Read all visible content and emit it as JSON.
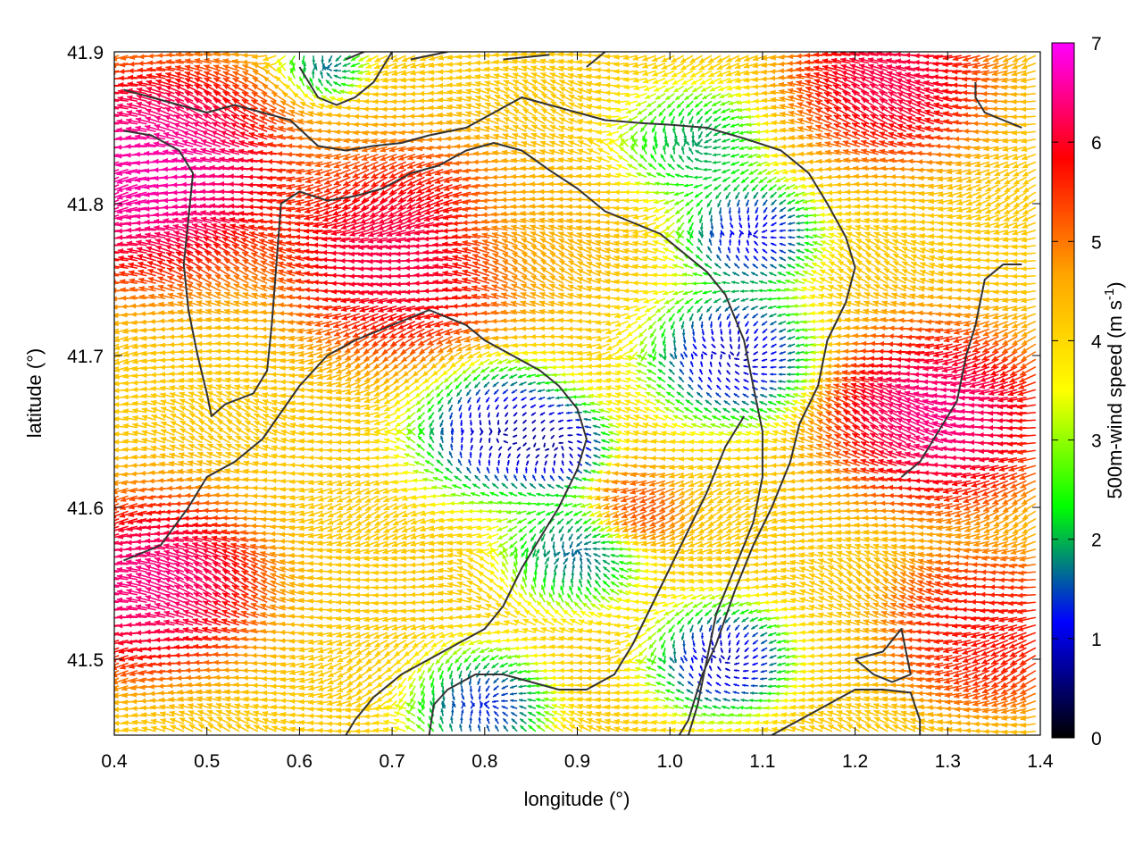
{
  "chart_data": {
    "type": "vector-field",
    "xlabel": "longitude (°)",
    "ylabel": "latitude (°)",
    "colorbar_label": "500m-wind speed (m s",
    "colorbar_label_sup": "-1",
    "colorbar_label_close": ")",
    "xlim": [
      0.4,
      1.4
    ],
    "ylim": [
      41.45,
      41.9
    ],
    "x_ticks": [
      0.4,
      0.5,
      0.6,
      0.7,
      0.8,
      0.9,
      1.0,
      1.1,
      1.2,
      1.3,
      1.4
    ],
    "x_tick_labels": [
      "0.4",
      "0.5",
      "0.6",
      "0.7",
      "0.8",
      "0.9",
      "1.0",
      "1.1",
      "1.2",
      "1.3",
      "1.4"
    ],
    "y_ticks": [
      41.5,
      41.6,
      41.7,
      41.8,
      41.9
    ],
    "y_tick_labels": [
      "41.5",
      "41.6",
      "41.7",
      "41.8",
      "41.9"
    ],
    "colorbar": {
      "min": 0,
      "max": 7,
      "ticks": [
        0,
        1,
        2,
        3,
        4,
        5,
        6,
        7
      ],
      "tick_labels": [
        "0",
        "1",
        "2",
        "3",
        "4",
        "5",
        "6",
        "7"
      ],
      "palette": [
        "#000000",
        "#0000ff",
        "#00ff00",
        "#ffff00",
        "#ffa500",
        "#ff0000",
        "#ff00ff"
      ]
    },
    "wind_field": {
      "lon_step": 0.01,
      "lat_step": 0.005,
      "speed_centers": [
        {
          "lon": 0.82,
          "lat": 41.65,
          "speed": 0.2,
          "radius": 0.06
        },
        {
          "lon": 0.88,
          "lat": 41.64,
          "speed": 0.3,
          "radius": 0.04
        },
        {
          "lon": 1.07,
          "lat": 41.7,
          "speed": 0.3,
          "radius": 0.06
        },
        {
          "lon": 1.09,
          "lat": 41.78,
          "speed": 0.5,
          "radius": 0.05
        },
        {
          "lon": 1.06,
          "lat": 41.5,
          "speed": 0.3,
          "radius": 0.05
        },
        {
          "lon": 0.8,
          "lat": 41.47,
          "speed": 0.8,
          "radius": 0.05
        },
        {
          "lon": 0.63,
          "lat": 41.89,
          "speed": 1.2,
          "radius": 0.03
        },
        {
          "lon": 1.03,
          "lat": 41.84,
          "speed": 1.5,
          "radius": 0.05
        },
        {
          "lon": 0.9,
          "lat": 41.57,
          "speed": 1.2,
          "radius": 0.05
        },
        {
          "lon": 0.97,
          "lat": 41.6,
          "speed": 5.5,
          "radius": 0.035
        },
        {
          "lon": 0.72,
          "lat": 41.77,
          "speed": 6.5,
          "radius": 0.09
        },
        {
          "lon": 0.45,
          "lat": 41.82,
          "speed": 7,
          "radius": 0.1
        },
        {
          "lon": 0.45,
          "lat": 41.55,
          "speed": 6.8,
          "radius": 0.08
        },
        {
          "lon": 1.3,
          "lat": 41.66,
          "speed": 6.8,
          "radius": 0.08
        },
        {
          "lon": 1.25,
          "lat": 41.88,
          "speed": 6.5,
          "radius": 0.07
        },
        {
          "lon": 1.35,
          "lat": 41.52,
          "speed": 6,
          "radius": 0.07
        },
        {
          "lon": 0.86,
          "lat": 41.78,
          "speed": 4.5,
          "radius": 0.06
        }
      ],
      "background_speed": 4.2
    },
    "contours": [
      [
        [
          0.41,
          41.875
        ],
        [
          0.44,
          41.87
        ],
        [
          0.47,
          41.865
        ],
        [
          0.5,
          41.86
        ],
        [
          0.53,
          41.865
        ],
        [
          0.56,
          41.86
        ],
        [
          0.59,
          41.855
        ],
        [
          0.62,
          41.838
        ],
        [
          0.65,
          41.835
        ],
        [
          0.68,
          41.838
        ],
        [
          0.71,
          41.84
        ],
        [
          0.74,
          41.845
        ],
        [
          0.78,
          41.85
        ],
        [
          0.81,
          41.86
        ],
        [
          0.84,
          41.87
        ],
        [
          0.87,
          41.865
        ],
        [
          0.9,
          41.86
        ],
        [
          0.93,
          41.855
        ],
        [
          0.97,
          41.853
        ],
        [
          1.0,
          41.852
        ],
        [
          1.04,
          41.85
        ],
        [
          1.08,
          41.843
        ],
        [
          1.12,
          41.835
        ],
        [
          1.15,
          41.82
        ],
        [
          1.17,
          41.8
        ],
        [
          1.19,
          41.778
        ],
        [
          1.2,
          41.758
        ],
        [
          1.19,
          41.735
        ],
        [
          1.17,
          41.71
        ],
        [
          1.16,
          41.68
        ],
        [
          1.14,
          41.655
        ],
        [
          1.13,
          41.63
        ],
        [
          1.11,
          41.6
        ],
        [
          1.09,
          41.575
        ],
        [
          1.07,
          41.545
        ],
        [
          1.05,
          41.51
        ],
        [
          1.035,
          41.49
        ],
        [
          1.02,
          41.46
        ],
        [
          1.01,
          41.45
        ]
      ],
      [
        [
          0.41,
          41.848
        ],
        [
          0.44,
          41.845
        ],
        [
          0.47,
          41.835
        ],
        [
          0.485,
          41.82
        ],
        [
          0.48,
          41.79
        ],
        [
          0.475,
          41.76
        ],
        [
          0.48,
          41.73
        ],
        [
          0.49,
          41.7
        ],
        [
          0.5,
          41.675
        ],
        [
          0.505,
          41.66
        ],
        [
          0.52,
          41.668
        ],
        [
          0.55,
          41.675
        ],
        [
          0.565,
          41.69
        ],
        [
          0.57,
          41.72
        ],
        [
          0.575,
          41.76
        ],
        [
          0.58,
          41.8
        ],
        [
          0.6,
          41.808
        ],
        [
          0.63,
          41.802
        ],
        [
          0.66,
          41.805
        ],
        [
          0.69,
          41.81
        ],
        [
          0.72,
          41.82
        ],
        [
          0.75,
          41.825
        ],
        [
          0.78,
          41.835
        ],
        [
          0.81,
          41.84
        ],
        [
          0.84,
          41.835
        ],
        [
          0.87,
          41.822
        ],
        [
          0.9,
          41.81
        ],
        [
          0.93,
          41.795
        ],
        [
          0.95,
          41.79
        ],
        [
          0.97,
          41.785
        ],
        [
          0.99,
          41.78
        ],
        [
          1.02,
          41.765
        ],
        [
          1.04,
          41.755
        ],
        [
          1.06,
          41.74
        ],
        [
          1.08,
          41.71
        ],
        [
          1.09,
          41.68
        ],
        [
          1.1,
          41.65
        ],
        [
          1.1,
          41.62
        ],
        [
          1.09,
          41.59
        ],
        [
          1.07,
          41.56
        ],
        [
          1.05,
          41.53
        ],
        [
          1.04,
          41.5
        ],
        [
          1.03,
          41.47
        ],
        [
          1.02,
          41.45
        ]
      ],
      [
        [
          0.41,
          41.565
        ],
        [
          0.45,
          41.575
        ],
        [
          0.48,
          41.6
        ],
        [
          0.5,
          41.62
        ],
        [
          0.53,
          41.63
        ],
        [
          0.56,
          41.645
        ],
        [
          0.6,
          41.68
        ],
        [
          0.63,
          41.7
        ],
        [
          0.66,
          41.71
        ],
        [
          0.7,
          41.72
        ],
        [
          0.74,
          41.73
        ],
        [
          0.78,
          41.72
        ],
        [
          0.8,
          41.71
        ],
        [
          0.83,
          41.7
        ],
        [
          0.86,
          41.69
        ],
        [
          0.88,
          41.68
        ],
        [
          0.9,
          41.665
        ],
        [
          0.91,
          41.645
        ],
        [
          0.9,
          41.625
        ],
        [
          0.88,
          41.6
        ],
        [
          0.86,
          41.58
        ],
        [
          0.84,
          41.56
        ],
        [
          0.82,
          41.535
        ],
        [
          0.8,
          41.52
        ],
        [
          0.77,
          41.51
        ],
        [
          0.74,
          41.5
        ],
        [
          0.71,
          41.49
        ],
        [
          0.68,
          41.475
        ],
        [
          0.66,
          41.46
        ],
        [
          0.65,
          41.45
        ]
      ],
      [
        [
          0.74,
          41.45
        ],
        [
          0.745,
          41.47
        ],
        [
          0.76,
          41.48
        ],
        [
          0.79,
          41.49
        ],
        [
          0.82,
          41.49
        ],
        [
          0.85,
          41.485
        ],
        [
          0.88,
          41.48
        ],
        [
          0.91,
          41.48
        ],
        [
          0.94,
          41.49
        ],
        [
          0.96,
          41.51
        ],
        [
          0.98,
          41.535
        ],
        [
          1.0,
          41.56
        ],
        [
          1.02,
          41.585
        ],
        [
          1.04,
          41.61
        ],
        [
          1.06,
          41.64
        ],
        [
          1.08,
          41.66
        ]
      ],
      [
        [
          1.2,
          41.5
        ],
        [
          1.23,
          41.505
        ],
        [
          1.25,
          41.52
        ],
        [
          1.255,
          41.505
        ],
        [
          1.26,
          41.49
        ],
        [
          1.24,
          41.485
        ],
        [
          1.22,
          41.49
        ],
        [
          1.2,
          41.5
        ]
      ],
      [
        [
          1.11,
          41.45
        ],
        [
          1.14,
          41.46
        ],
        [
          1.17,
          41.47
        ],
        [
          1.2,
          41.48
        ],
        [
          1.23,
          41.48
        ],
        [
          1.26,
          41.478
        ],
        [
          1.27,
          41.46
        ],
        [
          1.27,
          41.45
        ]
      ],
      [
        [
          1.33,
          41.88
        ],
        [
          1.33,
          41.87
        ],
        [
          1.34,
          41.86
        ],
        [
          1.36,
          41.855
        ],
        [
          1.38,
          41.85
        ]
      ],
      [
        [
          1.25,
          41.62
        ],
        [
          1.27,
          41.63
        ],
        [
          1.29,
          41.65
        ],
        [
          1.31,
          41.67
        ],
        [
          1.32,
          41.7
        ],
        [
          1.33,
          41.72
        ],
        [
          1.34,
          41.75
        ],
        [
          1.36,
          41.76
        ],
        [
          1.38,
          41.76
        ]
      ],
      [
        [
          0.65,
          41.895
        ],
        [
          0.67,
          41.9
        ]
      ],
      [
        [
          0.72,
          41.895
        ],
        [
          0.76,
          41.9
        ]
      ],
      [
        [
          0.82,
          41.895
        ],
        [
          0.87,
          41.898
        ]
      ],
      [
        [
          0.91,
          41.89
        ],
        [
          0.93,
          41.9
        ]
      ],
      [
        [
          0.6,
          41.89
        ],
        [
          0.62,
          41.87
        ],
        [
          0.64,
          41.865
        ],
        [
          0.66,
          41.87
        ],
        [
          0.68,
          41.88
        ],
        [
          0.7,
          41.9
        ]
      ]
    ]
  }
}
